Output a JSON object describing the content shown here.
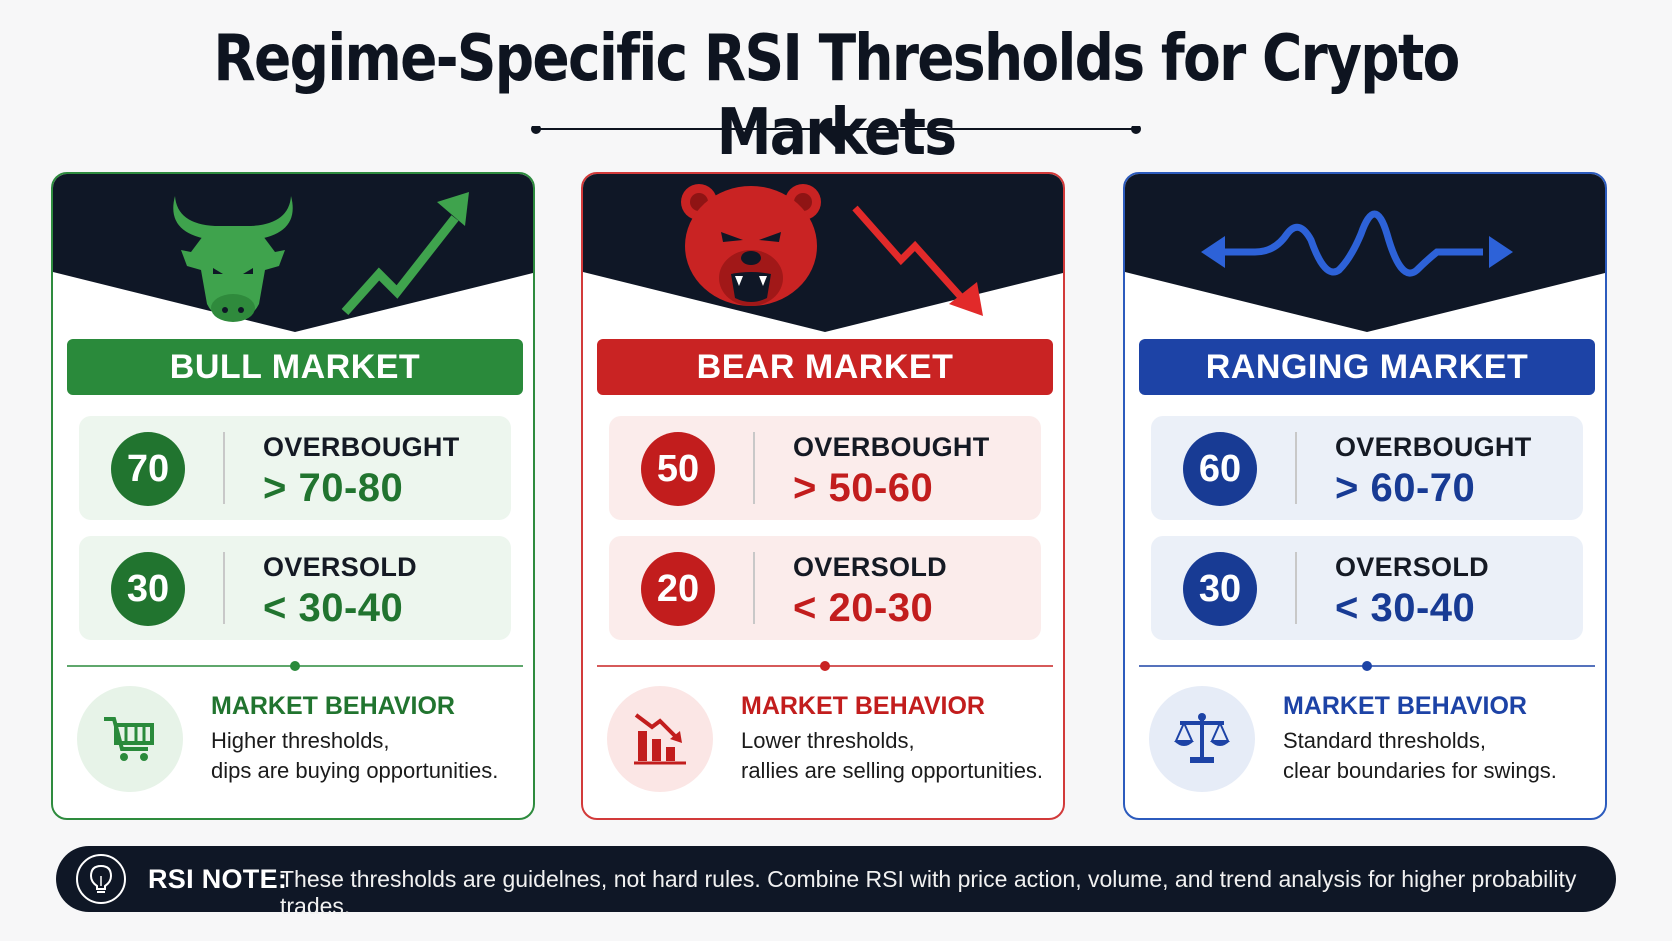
{
  "title": "Regime-Specific RSI Thresholds for Crypto Markets",
  "cards": [
    {
      "name": "BULL MARKET",
      "icons": [
        "bull-head-icon",
        "trend-up-arrow-icon"
      ],
      "overbought": {
        "badge": "70",
        "label": "OVERBOUGHT",
        "range": "> 70-80"
      },
      "oversold": {
        "badge": "30",
        "label": "OVERSOLD",
        "range": "< 30-40"
      },
      "behavior": {
        "icon": "shopping-cart-icon",
        "title": "MARKET BEHAVIOR",
        "line1": "Higher thresholds,",
        "line2": "dips are buying opportunities."
      },
      "accent": "#2a8a3b"
    },
    {
      "name": "BEAR MARKET",
      "icons": [
        "bear-head-icon",
        "trend-down-arrow-icon"
      ],
      "overbought": {
        "badge": "50",
        "label": "OVERBOUGHT",
        "range": "> 50-60"
      },
      "oversold": {
        "badge": "20",
        "label": "OVERSOLD",
        "range": "< 20-30"
      },
      "behavior": {
        "icon": "falling-bar-chart-icon",
        "title": "MARKET BEHAVIOR",
        "line1": "Lower thresholds,",
        "line2": "rallies are selling opportunities."
      },
      "accent": "#c92323"
    },
    {
      "name": "RANGING MARKET",
      "icons": [
        "sideways-wave-arrow-icon"
      ],
      "overbought": {
        "badge": "60",
        "label": "OVERBOUGHT",
        "range": "> 60-70"
      },
      "oversold": {
        "badge": "30",
        "label": "OVERSOLD",
        "range": "< 30-40"
      },
      "behavior": {
        "icon": "balance-scale-icon",
        "title": "MARKET BEHAVIOR",
        "line1": "Standard thresholds,",
        "line2": "clear boundaries for swings."
      },
      "accent": "#1d43a6"
    }
  ],
  "note": {
    "icon": "lightbulb-icon",
    "label": "RSI NOTE:",
    "text": "These thresholds are guidelnes, not hard rules. Combine RSI with price action, volume, and trend analysis for higher probability trades."
  }
}
